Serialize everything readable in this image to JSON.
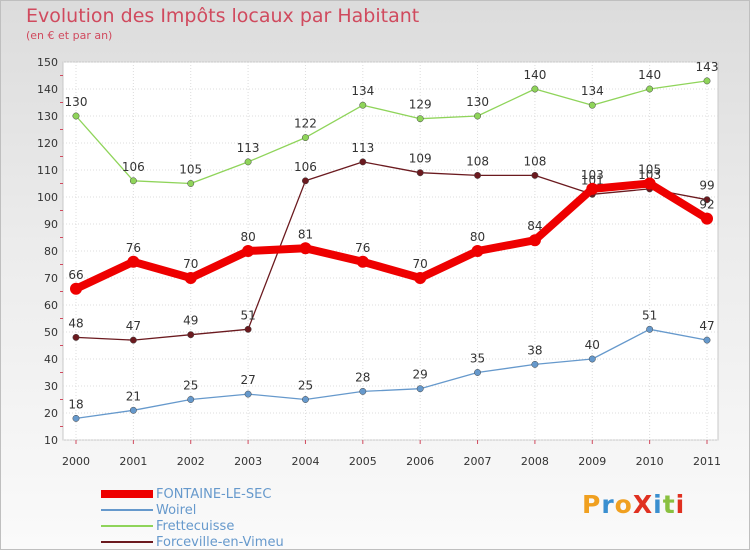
{
  "chart_data": {
    "type": "line",
    "title": "Evolution des Impôts locaux par Habitant",
    "subtitle": "(en € et par an)",
    "x": [
      "2000",
      "2001",
      "2002",
      "2003",
      "2004",
      "2005",
      "2006",
      "2007",
      "2008",
      "2009",
      "2010",
      "2011"
    ],
    "ylim": [
      10,
      150
    ],
    "yticks": [
      10,
      20,
      30,
      40,
      50,
      60,
      70,
      80,
      90,
      100,
      110,
      120,
      130,
      140,
      150
    ],
    "grid": true,
    "legend_position": "bottom-left",
    "series": [
      {
        "name": "Forceville-en-Vimeu",
        "color": "#6b1a1f",
        "values": [
          48,
          47,
          49,
          51,
          106,
          113,
          109,
          108,
          108,
          101,
          103,
          99
        ],
        "labels": [
          "48",
          "47",
          "49",
          "51",
          "106",
          "113",
          "109",
          "108",
          "108",
          "101",
          "103",
          "99"
        ]
      },
      {
        "name": "Frettecuisse",
        "color": "#8fd45a",
        "values": [
          130,
          106,
          105,
          113,
          122,
          134,
          129,
          130,
          140,
          134,
          140,
          143
        ],
        "labels": [
          "130",
          "106",
          "105",
          "113",
          "122",
          "134",
          "129",
          "130",
          "140",
          "134",
          "140",
          "143"
        ]
      },
      {
        "name": "Woirel",
        "color": "#6699cc",
        "values": [
          18,
          21,
          25,
          27,
          25,
          28,
          29,
          35,
          38,
          40,
          51,
          47
        ],
        "labels": [
          "18",
          "21",
          "25",
          "27",
          "25",
          "28",
          "29",
          "35",
          "38",
          "40",
          "51",
          "47"
        ]
      },
      {
        "name": "FONTAINE-LE-SEC",
        "color": "#ee0000",
        "values": [
          66,
          76,
          70,
          80,
          81,
          76,
          70,
          80,
          84,
          103,
          105,
          92
        ],
        "labels": [
          "66",
          "76",
          "70",
          "80",
          "81",
          "76",
          "70",
          "80",
          "84",
          "103",
          "105",
          "92"
        ]
      }
    ]
  },
  "legend": [
    {
      "name": "FONTAINE-LE-SEC",
      "color": "#ee0000"
    },
    {
      "name": "Woirel",
      "color": "#6699cc"
    },
    {
      "name": "Frettecuisse",
      "color": "#8fd45a"
    },
    {
      "name": "Forceville-en-Vimeu",
      "color": "#6b1a1f"
    }
  ],
  "logo": {
    "text": "ProXiti"
  }
}
